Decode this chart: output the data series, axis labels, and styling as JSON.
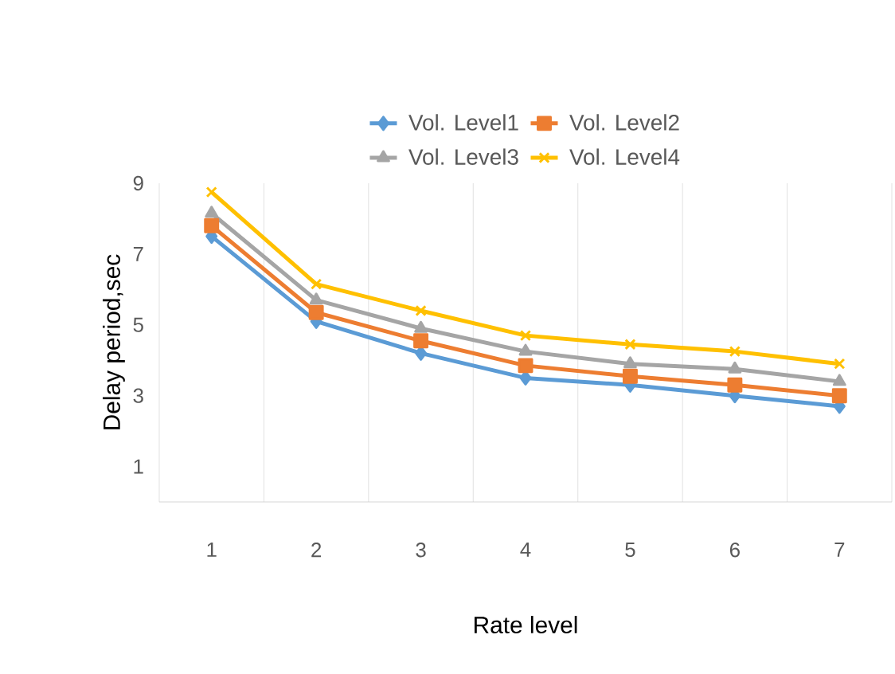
{
  "chart_data": {
    "type": "line",
    "xlabel": "Rate level",
    "ylabel": "Delay period,sec",
    "categories": [
      "1",
      "2",
      "3",
      "4",
      "5",
      "6",
      "7"
    ],
    "series": [
      {
        "name": "Vol. Level1",
        "color": "#5b9bd5",
        "marker": "diamond",
        "values": [
          7.5,
          5.1,
          4.2,
          3.5,
          3.3,
          3.0,
          2.7
        ]
      },
      {
        "name": "Vol. Level2",
        "color": "#ed7d31",
        "marker": "square",
        "values": [
          7.8,
          5.35,
          4.55,
          3.85,
          3.55,
          3.3,
          3.0
        ]
      },
      {
        "name": "Vol. Level3",
        "color": "#a5a5a5",
        "marker": "triangle",
        "values": [
          8.15,
          5.7,
          4.9,
          4.25,
          3.9,
          3.75,
          3.4
        ]
      },
      {
        "name": "Vol. Level4",
        "color": "#ffc000",
        "marker": "cross",
        "values": [
          8.75,
          6.15,
          5.4,
          4.7,
          4.45,
          4.25,
          3.9
        ]
      }
    ],
    "ylim": [
      0,
      9
    ],
    "yticks": [
      1,
      3,
      5,
      7,
      9
    ],
    "grid": "x",
    "legend": "top"
  }
}
